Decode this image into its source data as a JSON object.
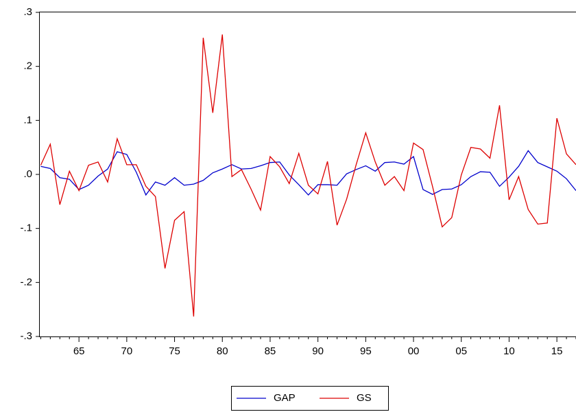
{
  "chart_data": {
    "type": "line",
    "categories": [
      null,
      null,
      null,
      null,
      "65",
      null,
      null,
      null,
      null,
      "70",
      null,
      null,
      null,
      null,
      "75",
      null,
      null,
      null,
      null,
      "80",
      null,
      null,
      null,
      null,
      "85",
      null,
      null,
      null,
      null,
      "90",
      null,
      null,
      null,
      null,
      "95",
      null,
      null,
      null,
      null,
      "00",
      null,
      null,
      null,
      null,
      "05",
      null,
      null,
      null,
      null,
      "10",
      null,
      null,
      null,
      null,
      "15",
      null,
      null
    ],
    "series": [
      {
        "name": "GAP",
        "color": "#0000cc",
        "values": [
          0.015,
          0.011,
          -0.006,
          -0.009,
          -0.028,
          -0.02,
          -0.003,
          0.01,
          0.042,
          0.037,
          0.004,
          -0.038,
          -0.014,
          -0.02,
          -0.006,
          -0.02,
          -0.018,
          -0.011,
          0.003,
          0.01,
          0.018,
          0.01,
          0.011,
          0.016,
          0.022,
          0.023,
          -0.001,
          -0.019,
          -0.038,
          -0.019,
          -0.019,
          -0.02,
          0.001,
          0.009,
          0.016,
          0.006,
          0.022,
          0.023,
          0.019,
          0.033,
          -0.028,
          -0.037,
          -0.028,
          -0.027,
          -0.019,
          -0.004,
          0.005,
          0.004,
          -0.022,
          -0.005,
          0.015,
          0.044,
          0.022,
          0.014,
          0.006,
          -0.008,
          -0.03
        ]
      },
      {
        "name": "GS",
        "color": "#dd0000",
        "values": [
          0.017,
          0.056,
          -0.056,
          0.006,
          -0.03,
          0.017,
          0.023,
          -0.014,
          0.066,
          0.018,
          0.018,
          -0.022,
          -0.041,
          -0.174,
          -0.085,
          -0.069,
          -0.263,
          0.253,
          0.114,
          0.259,
          -0.004,
          0.009,
          -0.027,
          -0.066,
          0.033,
          0.014,
          -0.017,
          0.039,
          -0.02,
          -0.036,
          0.024,
          -0.094,
          -0.046,
          0.018,
          0.077,
          0.023,
          -0.02,
          -0.004,
          -0.03,
          0.058,
          0.046,
          -0.023,
          -0.097,
          -0.08,
          -0.001,
          0.05,
          0.047,
          0.03,
          0.128,
          -0.047,
          -0.004,
          -0.065,
          -0.092,
          -0.09,
          0.104,
          0.038,
          0.018
        ]
      }
    ],
    "ylim": [
      -0.3,
      0.3
    ],
    "yticks": [
      {
        "value": -0.3,
        "label": "-.3"
      },
      {
        "value": -0.2,
        "label": "-.2"
      },
      {
        "value": -0.1,
        "label": "-.1"
      },
      {
        "value": 0,
        "label": ".0"
      },
      {
        "value": 0.1,
        "label": ".1"
      },
      {
        "value": 0.2,
        "label": ".2"
      },
      {
        "value": 0.3,
        "label": ".3"
      }
    ],
    "grid": false,
    "legend": "bottom"
  }
}
